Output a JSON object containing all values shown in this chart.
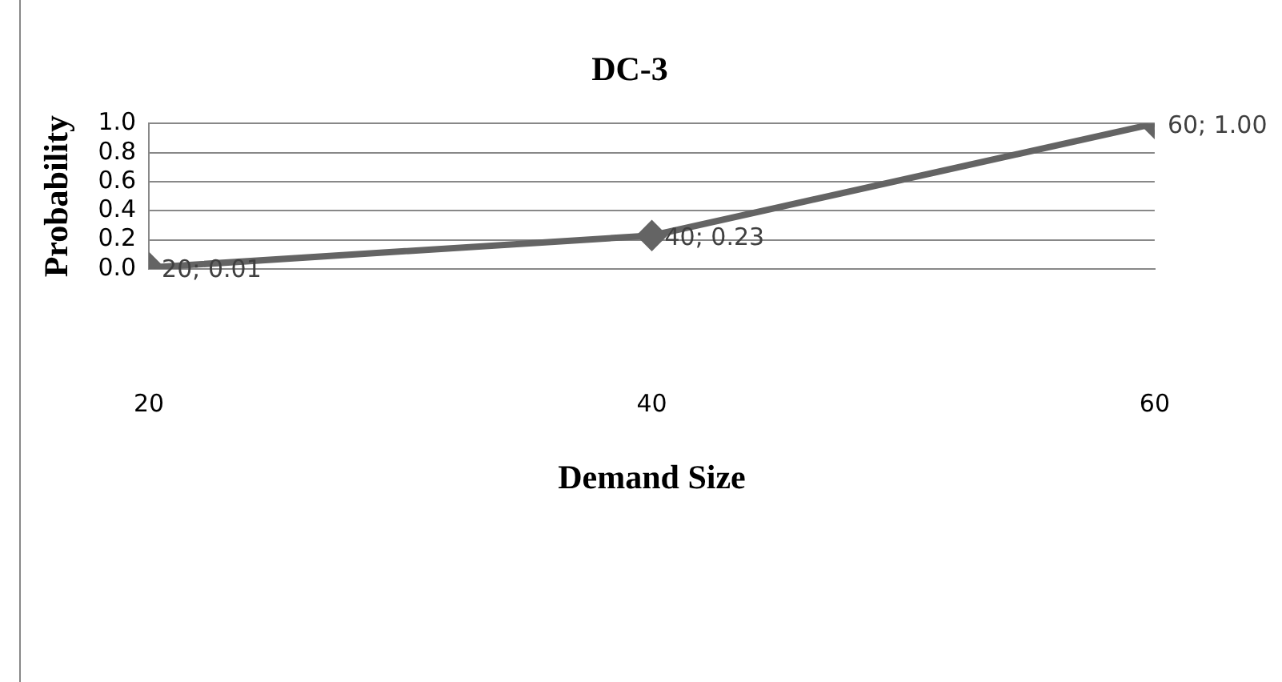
{
  "chart_data": {
    "type": "line",
    "title": "DC-3",
    "xlabel": "Demand Size",
    "ylabel": "Probability",
    "x": [
      20,
      40,
      60
    ],
    "series": [
      {
        "color": "#646464",
        "values": [
          0.01,
          0.23,
          1.0
        ],
        "value_labels": [
          "20; 0.01",
          "40; 0.23",
          "60; 1.00"
        ]
      }
    ],
    "xlim": [
      20,
      60
    ],
    "xticks": [
      20,
      40,
      60
    ],
    "ylim": [
      0,
      1
    ],
    "yticks": [
      {
        "value": 0,
        "label": "0.0"
      },
      {
        "value": 0.2,
        "label": "0.2"
      },
      {
        "value": 0.4,
        "label": "0.4"
      },
      {
        "value": 0.6,
        "label": "0.6"
      },
      {
        "value": 0.8,
        "label": "0.8"
      },
      {
        "value": 1,
        "label": "1.0"
      }
    ],
    "grid": "y",
    "legend": false,
    "marker": "diamond",
    "line_style": "solid"
  }
}
